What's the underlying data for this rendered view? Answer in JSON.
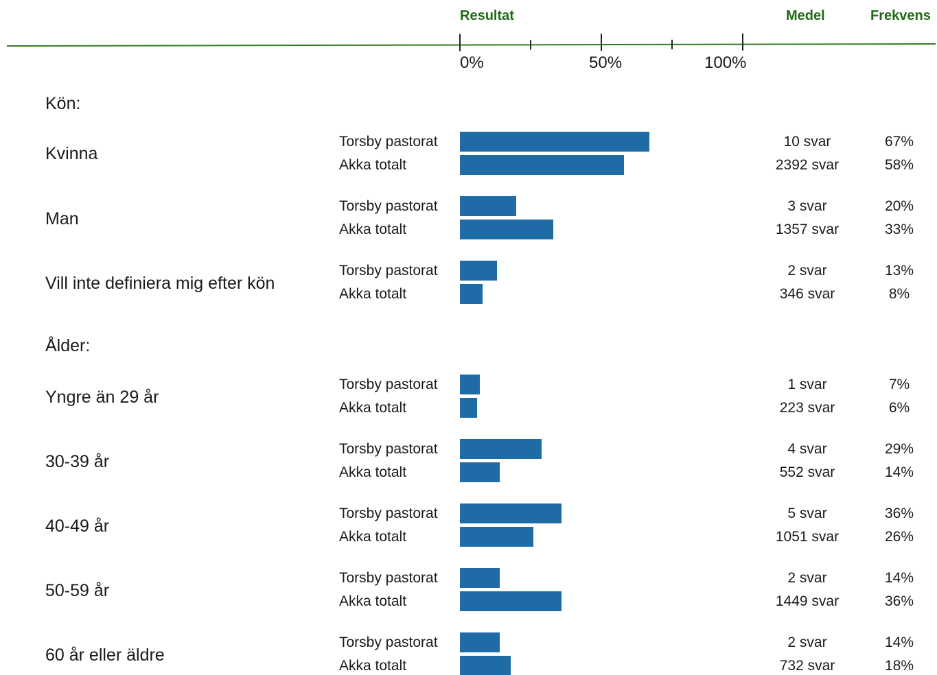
{
  "header": {
    "result_label": "Resultat",
    "mean_label": "Medel",
    "frequency_label": "Frekvens"
  },
  "colors": {
    "bar": "#1f6ba5",
    "header_text": "#1e6b14",
    "axis_line": "#2e7d1e"
  },
  "chart_data": {
    "type": "bar",
    "orientation": "horizontal",
    "xlim": [
      0,
      100
    ],
    "x_unit": "%",
    "tick_labels": [
      "0%",
      "50%",
      "100%"
    ],
    "grid": false,
    "series_names": [
      "Torsby pastorat",
      "Akka totalt"
    ],
    "sections": [
      {
        "title": "Kön:",
        "categories": [
          {
            "label": "Kvinna",
            "rows": [
              {
                "series": "Torsby pastorat",
                "value": 67,
                "responses": "10 svar",
                "frequency": "67%"
              },
              {
                "series": "Akka totalt",
                "value": 58,
                "responses": "2392 svar",
                "frequency": "58%"
              }
            ]
          },
          {
            "label": "Man",
            "rows": [
              {
                "series": "Torsby pastorat",
                "value": 20,
                "responses": "3 svar",
                "frequency": "20%"
              },
              {
                "series": "Akka totalt",
                "value": 33,
                "responses": "1357 svar",
                "frequency": "33%"
              }
            ]
          },
          {
            "label": "Vill inte definiera mig efter kön",
            "rows": [
              {
                "series": "Torsby pastorat",
                "value": 13,
                "responses": "2 svar",
                "frequency": "13%"
              },
              {
                "series": "Akka totalt",
                "value": 8,
                "responses": "346 svar",
                "frequency": "8%"
              }
            ]
          }
        ]
      },
      {
        "title": "Ålder:",
        "categories": [
          {
            "label": "Yngre än 29 år",
            "rows": [
              {
                "series": "Torsby pastorat",
                "value": 7,
                "responses": "1 svar",
                "frequency": "7%"
              },
              {
                "series": "Akka totalt",
                "value": 6,
                "responses": "223 svar",
                "frequency": "6%"
              }
            ]
          },
          {
            "label": "30-39 år",
            "rows": [
              {
                "series": "Torsby pastorat",
                "value": 29,
                "responses": "4 svar",
                "frequency": "29%"
              },
              {
                "series": "Akka totalt",
                "value": 14,
                "responses": "552 svar",
                "frequency": "14%"
              }
            ]
          },
          {
            "label": "40-49 år",
            "rows": [
              {
                "series": "Torsby pastorat",
                "value": 36,
                "responses": "5 svar",
                "frequency": "36%"
              },
              {
                "series": "Akka totalt",
                "value": 26,
                "responses": "1051 svar",
                "frequency": "26%"
              }
            ]
          },
          {
            "label": "50-59 år",
            "rows": [
              {
                "series": "Torsby pastorat",
                "value": 14,
                "responses": "2 svar",
                "frequency": "14%"
              },
              {
                "series": "Akka totalt",
                "value": 36,
                "responses": "1449 svar",
                "frequency": "36%"
              }
            ]
          },
          {
            "label": "60 år eller äldre",
            "rows": [
              {
                "series": "Torsby pastorat",
                "value": 14,
                "responses": "2 svar",
                "frequency": "14%"
              },
              {
                "series": "Akka totalt",
                "value": 18,
                "responses": "732 svar",
                "frequency": "18%"
              }
            ]
          }
        ]
      }
    ]
  }
}
